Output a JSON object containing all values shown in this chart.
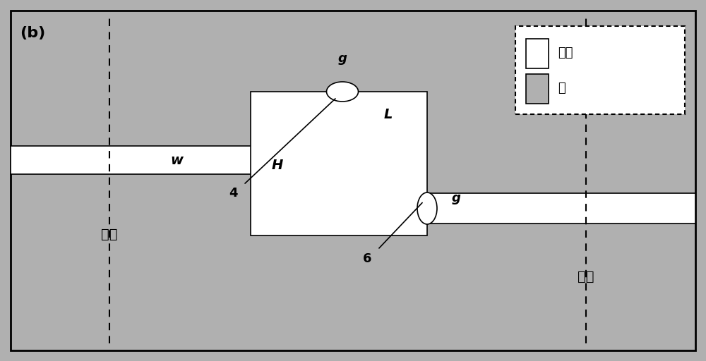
{
  "bg_color": "#b0b0b0",
  "silver_color": "#b0b0b0",
  "air_color": "#ffffff",
  "border_color": "#000000",
  "fig_width": 10.0,
  "fig_height": 5.12,
  "dpi": 100,
  "label_b": "(b)",
  "label_w": "w",
  "label_L": "L",
  "label_H": "H",
  "label_g_top": "g",
  "label_g_right": "g",
  "label_4": "4",
  "label_6": "6",
  "label_input": "输入",
  "label_output": "输出",
  "legend_air": "空气",
  "legend_silver": "银"
}
